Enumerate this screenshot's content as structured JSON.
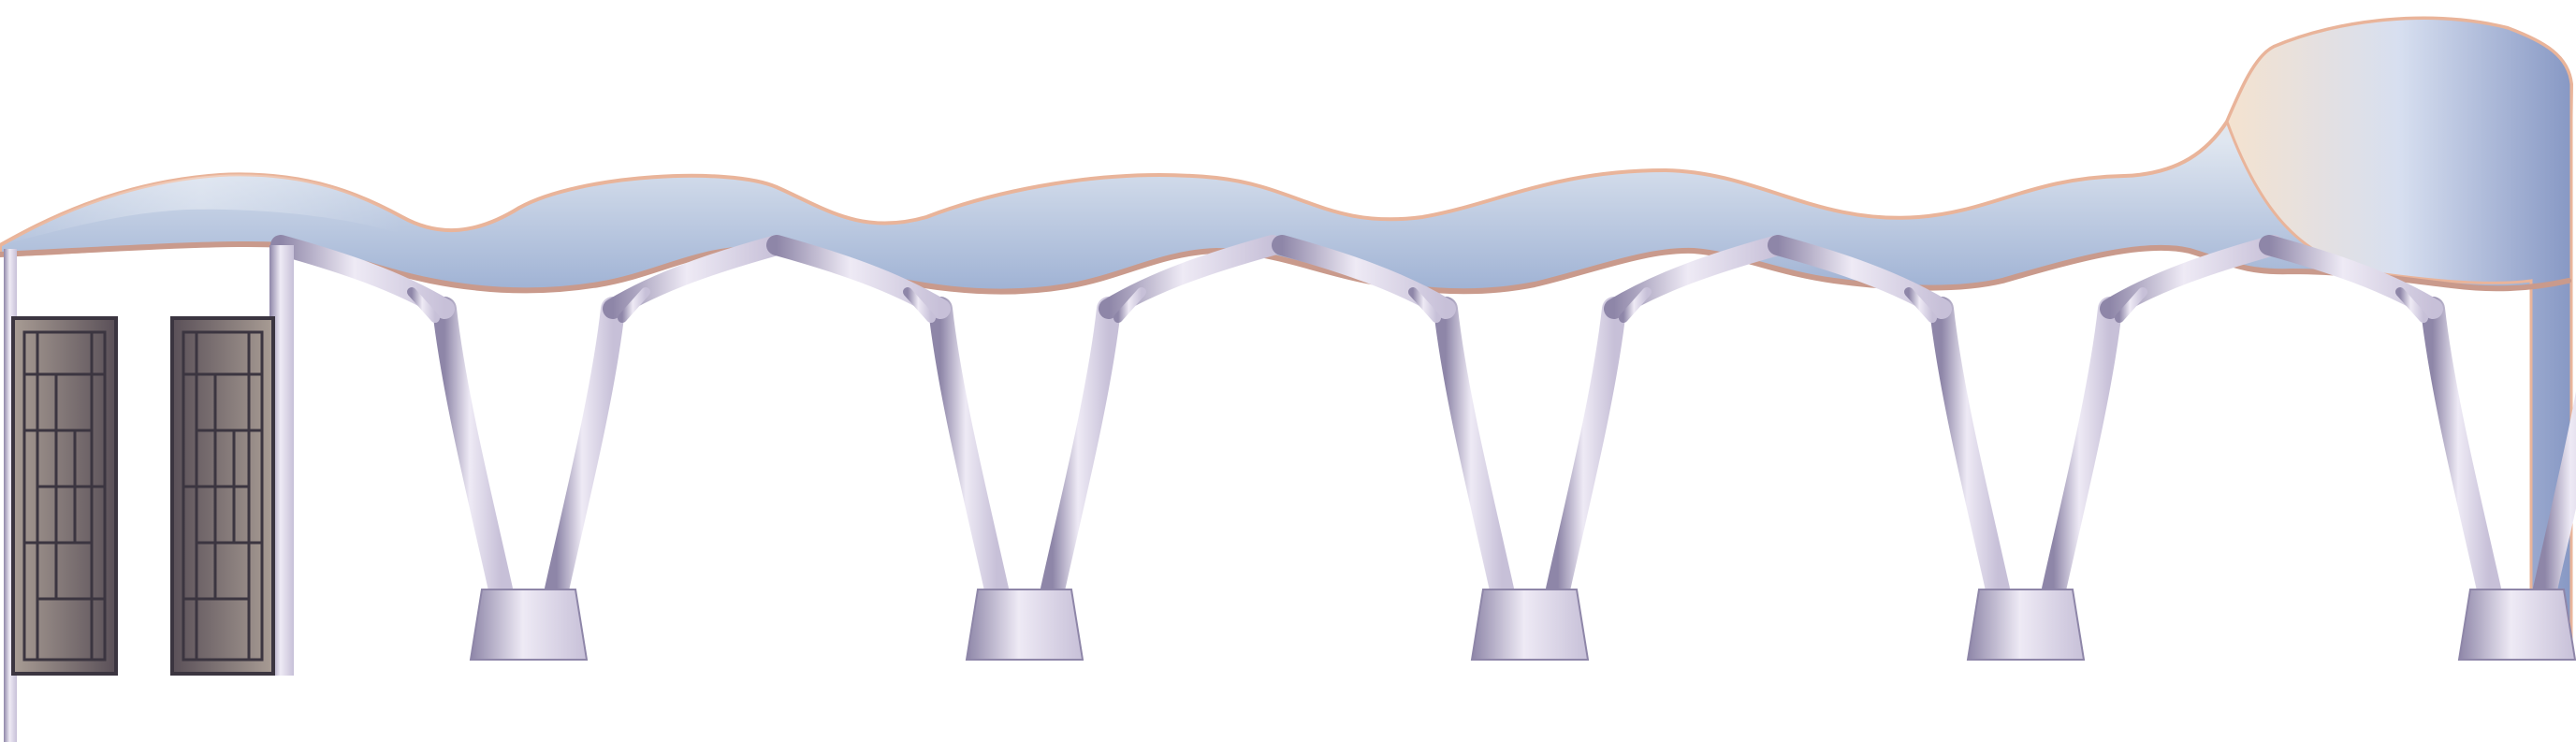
{
  "scene": {
    "subject": "canopy-walkway-render",
    "background_color": "#ffffff",
    "roof_colors": {
      "highlight": "#f4e2cf",
      "mid": "#dfe6f0",
      "shadow": "#9fb2d4",
      "edge": "#e9b49a"
    },
    "frame_colors": {
      "highlight": "#eeeaf5",
      "mid": "#c7c0d8",
      "shadow": "#8e86a8"
    },
    "door_colors": {
      "panel_light": "#a89c94",
      "panel_dark": "#5a5058",
      "grille": "#3b3540",
      "frame": "#6e6570"
    },
    "column_count": 5,
    "door_count": 2
  }
}
